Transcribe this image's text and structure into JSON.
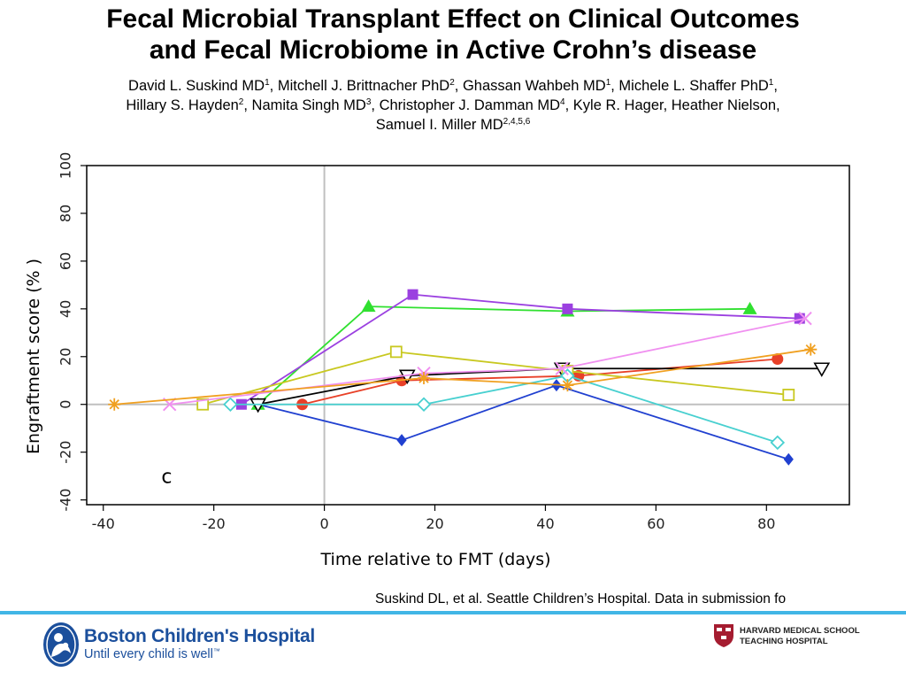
{
  "slide": {
    "title_lines": [
      "Fecal Microbial Transplant Effect on Clinical Outcomes",
      "and Fecal Microbiome in Active Crohn’s disease"
    ],
    "authors": [
      [
        {
          "name": "David L. Suskind MD",
          "sup": "1",
          "sep": ", "
        },
        {
          "name": "Mitchell J. Brittnacher PhD",
          "sup": "2",
          "sep": ", "
        },
        {
          "name": "Ghassan Wahbeh MD",
          "sup": "1",
          "sep": ", "
        },
        {
          "name": "Michele L. Shaffer PhD",
          "sup": "1",
          "sep": ","
        }
      ],
      [
        {
          "name": "Hillary S. Hayden",
          "sup": "2",
          "sep": ", "
        },
        {
          "name": "Namita Singh MD",
          "sup": "3",
          "sep": ", "
        },
        {
          "name": "Christopher J. Damman MD",
          "sup": "4",
          "sep": ", "
        },
        {
          "name": "Kyle R. Hager, Heather Nielson,",
          "sup": "",
          "sep": ""
        }
      ],
      [
        {
          "name": "Samuel I. Miller MD",
          "sup": "2,4,5,6",
          "sep": ""
        }
      ]
    ],
    "citation": "Suskind DL, et al. Seattle Children’s Hospital.  Data in submission fo",
    "footer": {
      "hospital_name": "Boston Children's Hospital",
      "tagline": "Until every child is well",
      "tagline_mark": "™",
      "affiliation_lines": [
        "HARVARD MEDICAL SCHOOL",
        "TEACHING HOSPITAL"
      ],
      "brand_color": "#1b4f9c",
      "rule_color": "#41b6e6",
      "hms_color": "#a51c30"
    }
  },
  "chart_data": {
    "type": "line",
    "panel_label": "c",
    "xlabel": "Time relative to FMT (days)",
    "ylabel": "Engraftment score (% )",
    "xlim": [
      -43,
      95
    ],
    "ylim": [
      -42,
      100
    ],
    "xticks": [
      -40,
      -20,
      0,
      20,
      40,
      60,
      80
    ],
    "yticks": [
      -40,
      -20,
      0,
      20,
      40,
      60,
      80,
      100
    ],
    "grid": false,
    "reference_lines": {
      "x": 0,
      "y": 0,
      "color": "#c0c0c0"
    },
    "series": [
      {
        "color": "#2040d0",
        "marker": "diamond-filled",
        "x": [
          -12,
          14,
          42,
          84
        ],
        "y": [
          0,
          -15,
          8,
          -23
        ]
      },
      {
        "color": "#30e030",
        "marker": "triangle-filled",
        "x": [
          -12,
          8,
          44,
          77
        ],
        "y": [
          0,
          41,
          39,
          40
        ]
      },
      {
        "color": "#9b40e0",
        "marker": "square-filled",
        "x": [
          -15,
          16,
          44,
          86
        ],
        "y": [
          0,
          46,
          40,
          36
        ]
      },
      {
        "color": "#e84028",
        "marker": "circle-filled",
        "x": [
          -4,
          14,
          46,
          82
        ],
        "y": [
          0,
          10,
          12,
          19
        ]
      },
      {
        "color": "#000000",
        "marker": "triangle-down-open",
        "x": [
          -12,
          15,
          43,
          90
        ],
        "y": [
          0,
          12,
          15,
          15
        ]
      },
      {
        "color": "#c8c820",
        "marker": "square-open",
        "x": [
          -22,
          13,
          44,
          84
        ],
        "y": [
          0,
          22,
          14,
          4
        ]
      },
      {
        "color": "#48d0d0",
        "marker": "diamond-open",
        "x": [
          -17,
          18,
          44,
          82
        ],
        "y": [
          0,
          0,
          12,
          -16
        ]
      },
      {
        "color": "#f090f0",
        "marker": "x",
        "x": [
          -28,
          18,
          43,
          87
        ],
        "y": [
          0,
          13,
          15,
          36
        ]
      },
      {
        "color": "#f0a020",
        "marker": "asterisk",
        "x": [
          -38,
          18,
          44,
          88
        ],
        "y": [
          0,
          11,
          8,
          23
        ]
      }
    ]
  }
}
